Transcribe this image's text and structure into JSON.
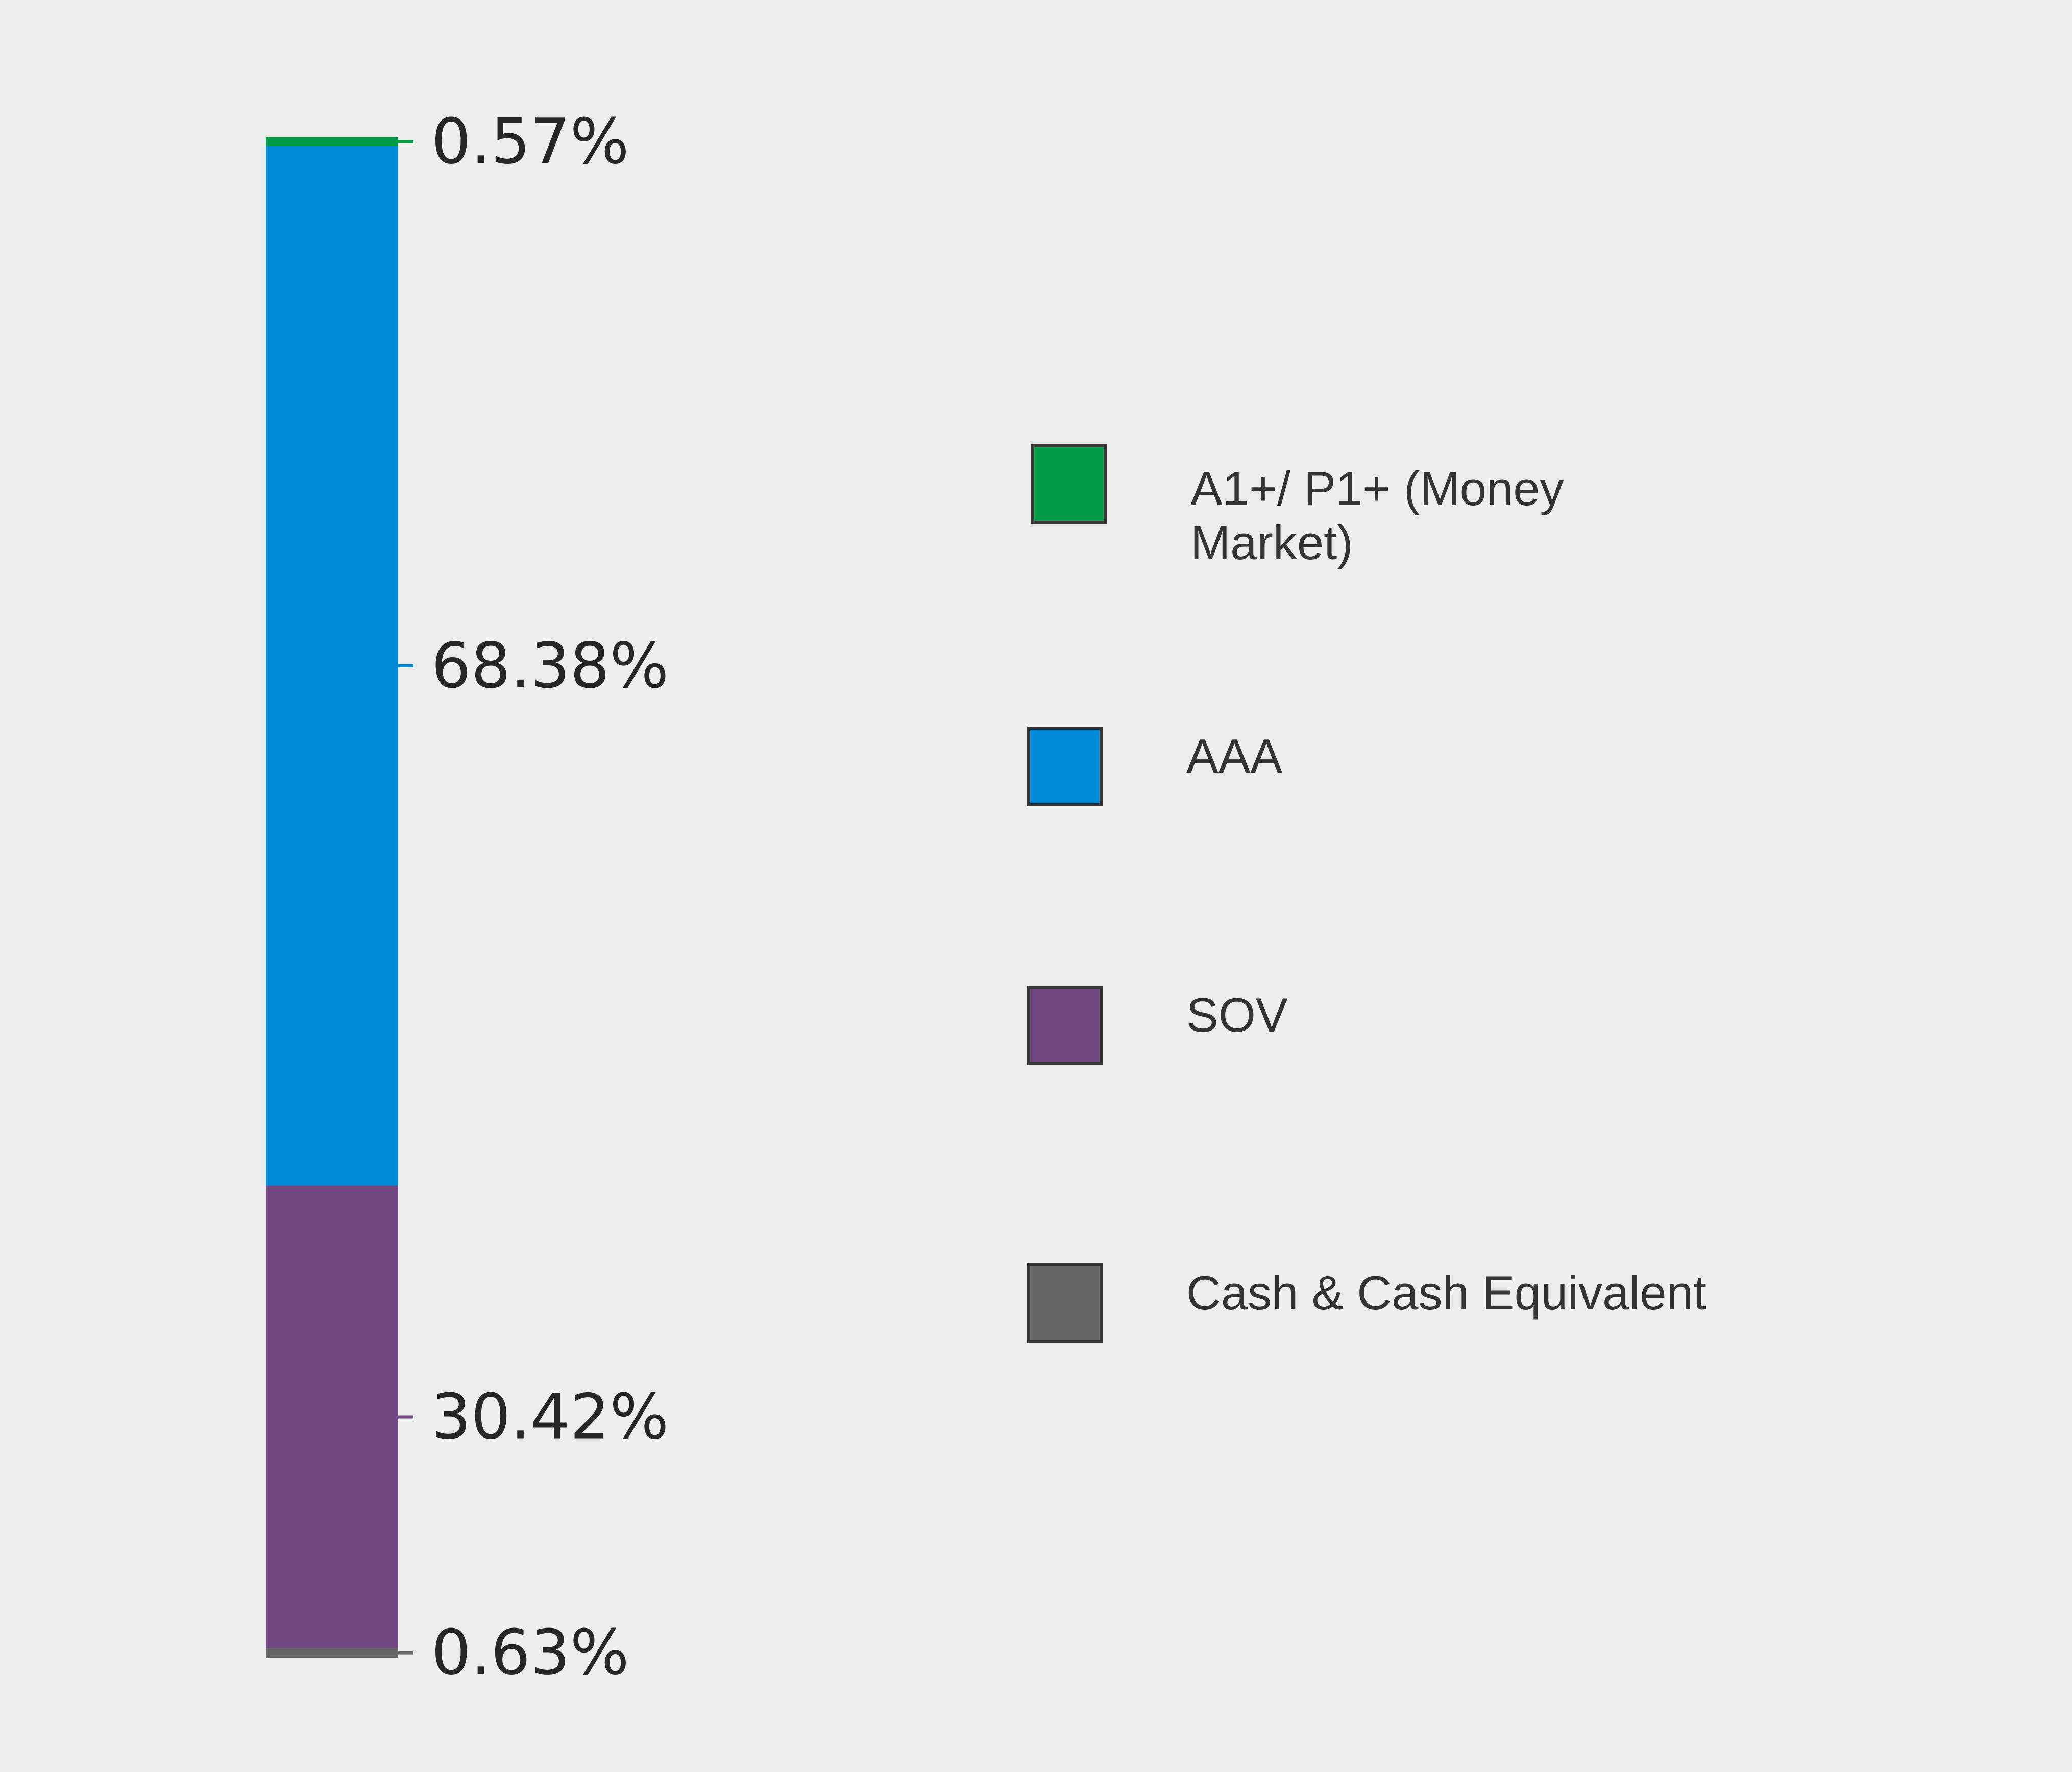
{
  "chart_data": {
    "type": "bar",
    "stacked": true,
    "orientation": "vertical",
    "series": [
      {
        "name": "A1+/ P1+ (Money Market)",
        "value": 0.57,
        "label": "0.57%",
        "color": "#009a44"
      },
      {
        "name": "AAA",
        "value": 68.38,
        "label": "68.38%",
        "color": "#008ad5"
      },
      {
        "name": "SOV",
        "value": 30.42,
        "label": "30.42%",
        "color": "#714782"
      },
      {
        "name": "Cash & Cash Equivalent",
        "value": 0.63,
        "label": "0.63%",
        "color": "#646464"
      }
    ],
    "legend_position": "right",
    "grid": false
  }
}
